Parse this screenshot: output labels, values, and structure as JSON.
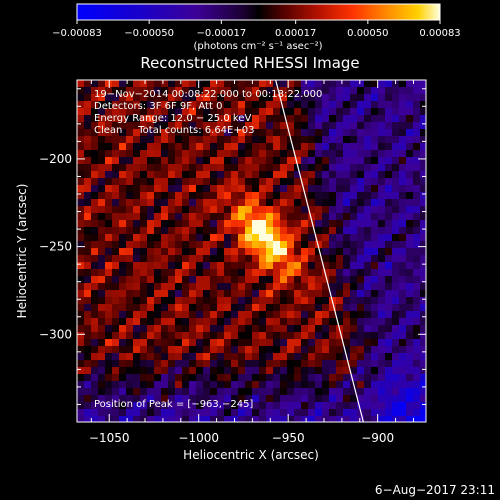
{
  "chart_data": {
    "type": "heatmap",
    "title": "Reconstructed RHESSI Image",
    "xlabel": "Heliocentric X (arcsec)",
    "ylabel": "Heliocentric Y (arcsec)",
    "xlim": [
      -1068,
      -873
    ],
    "ylim": [
      -350,
      -155
    ],
    "x_ticks": [
      -1050,
      -1000,
      -950,
      -900
    ],
    "y_ticks": [
      -200,
      -250,
      -300
    ],
    "x_tick_labels": [
      "−1050",
      "−1000",
      "−950",
      "−900"
    ],
    "y_tick_labels": [
      "−200",
      "−250",
      "−300"
    ],
    "colorbar": {
      "min": -0.00083,
      "max": 0.00083,
      "ticks": [
        -0.00083,
        -0.0005,
        -0.00017,
        0.00017,
        0.0005,
        0.00083
      ],
      "tick_labels": [
        "−0.00083",
        "−0.00050",
        "−0.00017",
        "0.00017",
        "0.00050",
        "0.00083"
      ],
      "unit_label": "(photons cm⁻² s⁻¹ asec⁻²)"
    },
    "annotations": [
      "19−Nov−2014 00:08:22.000 to 00:18:22.000",
      "Detectors: 3F 6F 9F, Att 0",
      "Energy Range: 12.0 − 25.0 keV",
      "Clean     Total counts: 6.64E+03"
    ],
    "peak": {
      "x": -963,
      "y": -245,
      "label": "Position of Peak = [−963,−245]"
    },
    "limb_line": {
      "x1": -957,
      "y1": -155,
      "x2": -908,
      "y2": -350
    }
  },
  "footer": {
    "timestamp": "6−Aug−2017 23:11"
  }
}
